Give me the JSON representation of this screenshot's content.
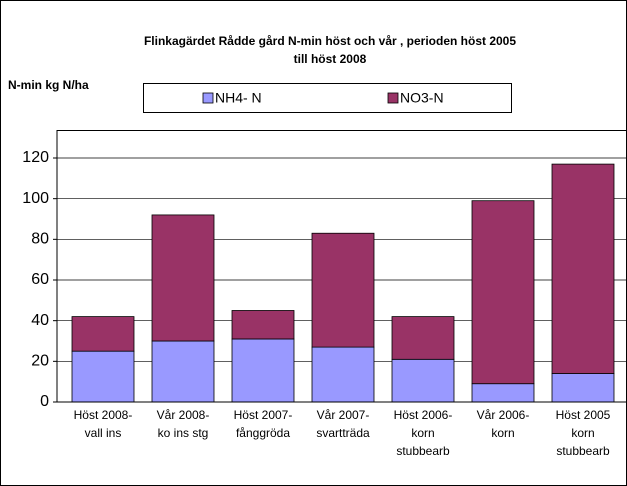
{
  "chart_data": {
    "type": "stacked_bar",
    "title": "Flinkagärdet  Rådde gård N-min höst och vår , perioden höst 2005\ntill höst 2008",
    "y_label": "N-min kg N/ha",
    "categories": [
      "Höst 2008-\nvall ins",
      "Vår 2008-\nko ins stg",
      "Höst 2007-\nfånggröda",
      "Vår 2007-\nsvartträda",
      "Höst 2006-\nkorn\nstubbearb",
      "Vår 2006-\nkorn",
      "Höst 2005\nkorn\nstubbearb"
    ],
    "series": [
      {
        "name": "NH4- N",
        "color": "#9999ff",
        "values": [
          25,
          30,
          31,
          27,
          21,
          9,
          14
        ]
      },
      {
        "name": "NO3-N",
        "color": "#993366",
        "values": [
          17,
          62,
          14,
          56,
          21,
          90,
          103
        ]
      }
    ],
    "ylim": [
      0,
      120
    ],
    "yticks": [
      0,
      20,
      40,
      60,
      80,
      100,
      120
    ],
    "grid": true,
    "legend": "top"
  }
}
